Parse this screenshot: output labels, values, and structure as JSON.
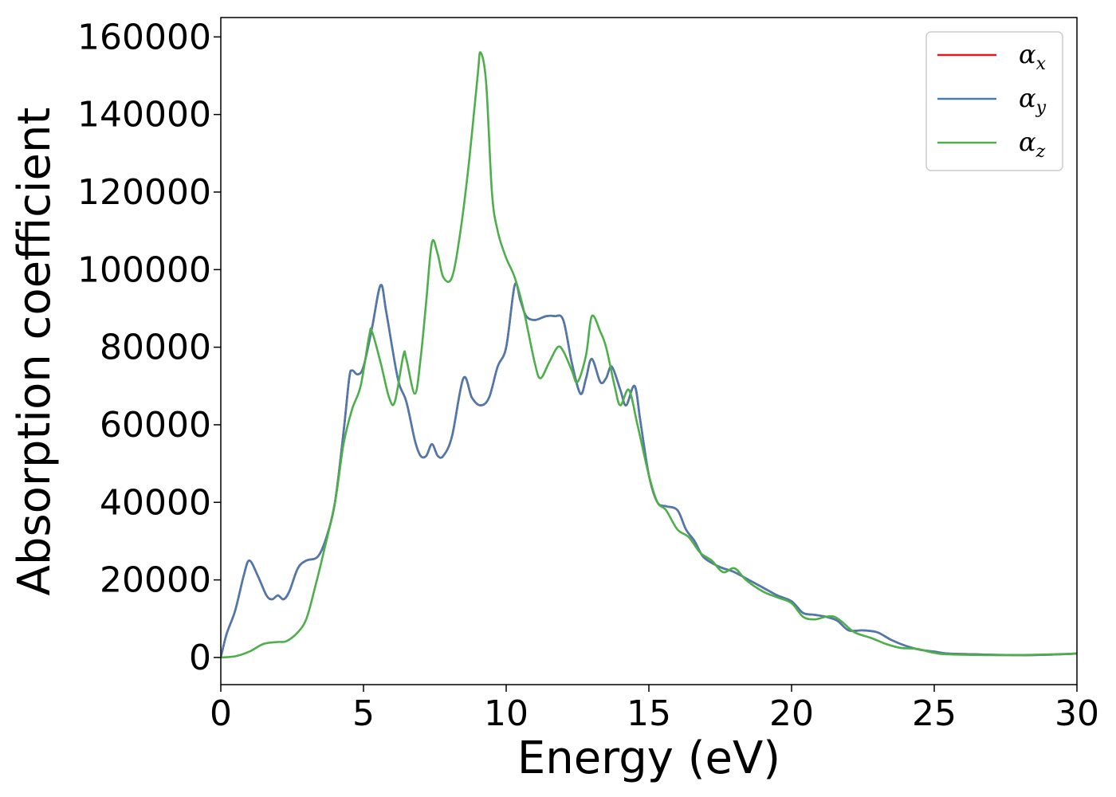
{
  "chart_data": {
    "type": "line",
    "title": "",
    "xlabel": "Energy (eV)",
    "ylabel": "Absorption coefficient",
    "xlim": [
      0,
      30
    ],
    "ylim": [
      -7000,
      165000
    ],
    "xticks": [
      "0",
      "5",
      "10",
      "15",
      "20",
      "25",
      "30"
    ],
    "yticks": [
      "0",
      "20000",
      "40000",
      "60000",
      "80000",
      "100000",
      "120000",
      "140000",
      "160000"
    ],
    "grid": false,
    "legend_position": "top-right",
    "series": [
      {
        "name": "α",
        "subscript": "x",
        "color": "#e41a1c",
        "points": [
          [
            0,
            0
          ],
          [
            0.2,
            6000
          ],
          [
            0.5,
            12000
          ],
          [
            0.8,
            21000
          ],
          [
            1.0,
            25000
          ],
          [
            1.3,
            21000
          ],
          [
            1.6,
            16000
          ],
          [
            1.8,
            15000
          ],
          [
            2.0,
            16000
          ],
          [
            2.2,
            15000
          ],
          [
            2.4,
            17000
          ],
          [
            2.7,
            23000
          ],
          [
            3.0,
            25000
          ],
          [
            3.4,
            26000
          ],
          [
            3.7,
            31000
          ],
          [
            4.0,
            40000
          ],
          [
            4.3,
            58000
          ],
          [
            4.5,
            72000
          ],
          [
            4.6,
            74000
          ],
          [
            4.8,
            73000
          ],
          [
            5.0,
            75000
          ],
          [
            5.3,
            85000
          ],
          [
            5.6,
            96000
          ],
          [
            5.8,
            89000
          ],
          [
            6.2,
            72000
          ],
          [
            6.5,
            66000
          ],
          [
            6.8,
            56000
          ],
          [
            7.0,
            52000
          ],
          [
            7.2,
            52000
          ],
          [
            7.4,
            55000
          ],
          [
            7.6,
            52000
          ],
          [
            7.8,
            52000
          ],
          [
            8.1,
            57000
          ],
          [
            8.5,
            72000
          ],
          [
            8.8,
            67000
          ],
          [
            9.1,
            65000
          ],
          [
            9.4,
            67000
          ],
          [
            9.7,
            75000
          ],
          [
            10.0,
            80000
          ],
          [
            10.3,
            96000
          ],
          [
            10.5,
            92000
          ],
          [
            10.7,
            88000
          ],
          [
            11.0,
            87000
          ],
          [
            11.4,
            88000
          ],
          [
            11.7,
            88000
          ],
          [
            12.0,
            87000
          ],
          [
            12.3,
            76000
          ],
          [
            12.6,
            68000
          ],
          [
            12.8,
            72000
          ],
          [
            13.0,
            77000
          ],
          [
            13.3,
            71000
          ],
          [
            13.5,
            72000
          ],
          [
            13.7,
            75000
          ],
          [
            14.0,
            69000
          ],
          [
            14.2,
            65000
          ],
          [
            14.5,
            70000
          ],
          [
            14.7,
            61000
          ],
          [
            15.0,
            47000
          ],
          [
            15.3,
            40000
          ],
          [
            15.6,
            39000
          ],
          [
            16.0,
            38000
          ],
          [
            16.3,
            33000
          ],
          [
            16.6,
            30000
          ],
          [
            16.9,
            26000
          ],
          [
            17.3,
            24000
          ],
          [
            17.6,
            23000
          ],
          [
            18.0,
            22000
          ],
          [
            18.5,
            20000
          ],
          [
            19.0,
            18000
          ],
          [
            19.5,
            16000
          ],
          [
            20.0,
            14500
          ],
          [
            20.4,
            11500
          ],
          [
            20.8,
            11000
          ],
          [
            21.2,
            10500
          ],
          [
            21.6,
            9500
          ],
          [
            22.0,
            7000
          ],
          [
            22.5,
            7000
          ],
          [
            23.0,
            6500
          ],
          [
            23.5,
            4500
          ],
          [
            24.0,
            3000
          ],
          [
            24.5,
            2000
          ],
          [
            25.0,
            1500
          ],
          [
            25.5,
            1000
          ],
          [
            26.5,
            800
          ],
          [
            28.0,
            600
          ],
          [
            29.0,
            700
          ],
          [
            30.0,
            1000
          ]
        ]
      },
      {
        "name": "α",
        "subscript": "y",
        "color": "#4a7aae",
        "points": [
          [
            0,
            0
          ],
          [
            0.2,
            6000
          ],
          [
            0.5,
            12000
          ],
          [
            0.8,
            21000
          ],
          [
            1.0,
            25000
          ],
          [
            1.3,
            21000
          ],
          [
            1.6,
            16000
          ],
          [
            1.8,
            15000
          ],
          [
            2.0,
            16000
          ],
          [
            2.2,
            15000
          ],
          [
            2.4,
            17000
          ],
          [
            2.7,
            23000
          ],
          [
            3.0,
            25000
          ],
          [
            3.4,
            26000
          ],
          [
            3.7,
            31000
          ],
          [
            4.0,
            40000
          ],
          [
            4.3,
            58000
          ],
          [
            4.5,
            72000
          ],
          [
            4.6,
            74000
          ],
          [
            4.8,
            73000
          ],
          [
            5.0,
            75000
          ],
          [
            5.3,
            85000
          ],
          [
            5.6,
            96000
          ],
          [
            5.8,
            89000
          ],
          [
            6.2,
            72000
          ],
          [
            6.5,
            66000
          ],
          [
            6.8,
            56000
          ],
          [
            7.0,
            52000
          ],
          [
            7.2,
            52000
          ],
          [
            7.4,
            55000
          ],
          [
            7.6,
            52000
          ],
          [
            7.8,
            52000
          ],
          [
            8.1,
            57000
          ],
          [
            8.5,
            72000
          ],
          [
            8.8,
            67000
          ],
          [
            9.1,
            65000
          ],
          [
            9.4,
            67000
          ],
          [
            9.7,
            75000
          ],
          [
            10.0,
            80000
          ],
          [
            10.3,
            96000
          ],
          [
            10.5,
            92000
          ],
          [
            10.7,
            88000
          ],
          [
            11.0,
            87000
          ],
          [
            11.4,
            88000
          ],
          [
            11.7,
            88000
          ],
          [
            12.0,
            87000
          ],
          [
            12.3,
            76000
          ],
          [
            12.6,
            68000
          ],
          [
            12.8,
            72000
          ],
          [
            13.0,
            77000
          ],
          [
            13.3,
            71000
          ],
          [
            13.5,
            72000
          ],
          [
            13.7,
            75000
          ],
          [
            14.0,
            69000
          ],
          [
            14.2,
            65000
          ],
          [
            14.5,
            70000
          ],
          [
            14.7,
            61000
          ],
          [
            15.0,
            47000
          ],
          [
            15.3,
            40000
          ],
          [
            15.6,
            39000
          ],
          [
            16.0,
            38000
          ],
          [
            16.3,
            33000
          ],
          [
            16.6,
            30000
          ],
          [
            16.9,
            26000
          ],
          [
            17.3,
            24000
          ],
          [
            17.6,
            23000
          ],
          [
            18.0,
            22000
          ],
          [
            18.5,
            20000
          ],
          [
            19.0,
            18000
          ],
          [
            19.5,
            16000
          ],
          [
            20.0,
            14500
          ],
          [
            20.4,
            11500
          ],
          [
            20.8,
            11000
          ],
          [
            21.2,
            10500
          ],
          [
            21.6,
            9500
          ],
          [
            22.0,
            7000
          ],
          [
            22.5,
            7000
          ],
          [
            23.0,
            6500
          ],
          [
            23.5,
            4500
          ],
          [
            24.0,
            3000
          ],
          [
            24.5,
            2000
          ],
          [
            25.0,
            1500
          ],
          [
            25.5,
            1000
          ],
          [
            26.5,
            800
          ],
          [
            28.0,
            600
          ],
          [
            29.0,
            700
          ],
          [
            30.0,
            1000
          ]
        ]
      },
      {
        "name": "α",
        "subscript": "z",
        "color": "#4daf4a",
        "points": [
          [
            0,
            0
          ],
          [
            0.5,
            300
          ],
          [
            1.0,
            1500
          ],
          [
            1.5,
            3500
          ],
          [
            2.0,
            4000
          ],
          [
            2.3,
            4200
          ],
          [
            2.7,
            6500
          ],
          [
            3.0,
            10000
          ],
          [
            3.3,
            18000
          ],
          [
            3.6,
            27000
          ],
          [
            4.0,
            40000
          ],
          [
            4.3,
            55000
          ],
          [
            4.6,
            64000
          ],
          [
            4.9,
            70000
          ],
          [
            5.2,
            83000
          ],
          [
            5.3,
            84000
          ],
          [
            5.6,
            76000
          ],
          [
            5.9,
            67000
          ],
          [
            6.1,
            66000
          ],
          [
            6.4,
            78000
          ],
          [
            6.5,
            77000
          ],
          [
            6.8,
            68000
          ],
          [
            7.0,
            77000
          ],
          [
            7.2,
            92000
          ],
          [
            7.4,
            107000
          ],
          [
            7.6,
            104000
          ],
          [
            7.8,
            98000
          ],
          [
            8.1,
            98000
          ],
          [
            8.4,
            110000
          ],
          [
            8.7,
            128000
          ],
          [
            9.0,
            150000
          ],
          [
            9.1,
            156000
          ],
          [
            9.3,
            148000
          ],
          [
            9.5,
            120000
          ],
          [
            9.7,
            110000
          ],
          [
            10.0,
            103000
          ],
          [
            10.3,
            98000
          ],
          [
            10.6,
            90000
          ],
          [
            11.0,
            76000
          ],
          [
            11.2,
            72000
          ],
          [
            11.5,
            76000
          ],
          [
            11.8,
            80000
          ],
          [
            12.0,
            79000
          ],
          [
            12.3,
            74000
          ],
          [
            12.5,
            71000
          ],
          [
            12.8,
            78000
          ],
          [
            13.0,
            88000
          ],
          [
            13.3,
            84000
          ],
          [
            13.5,
            80000
          ],
          [
            13.8,
            70000
          ],
          [
            14.0,
            65000
          ],
          [
            14.3,
            69000
          ],
          [
            14.6,
            60000
          ],
          [
            15.0,
            47000
          ],
          [
            15.3,
            40000
          ],
          [
            15.6,
            38000
          ],
          [
            16.0,
            33000
          ],
          [
            16.4,
            31000
          ],
          [
            16.8,
            27000
          ],
          [
            17.2,
            25000
          ],
          [
            17.6,
            22000
          ],
          [
            18.0,
            23000
          ],
          [
            18.4,
            20000
          ],
          [
            19.0,
            17000
          ],
          [
            19.5,
            15500
          ],
          [
            20.0,
            14000
          ],
          [
            20.4,
            10500
          ],
          [
            20.8,
            9800
          ],
          [
            21.2,
            10500
          ],
          [
            21.5,
            10500
          ],
          [
            21.8,
            9000
          ],
          [
            22.2,
            6500
          ],
          [
            22.8,
            5000
          ],
          [
            23.3,
            3500
          ],
          [
            23.8,
            2500
          ],
          [
            24.4,
            2200
          ],
          [
            25.0,
            1200
          ],
          [
            25.5,
            800
          ],
          [
            27.0,
            600
          ],
          [
            28.5,
            700
          ],
          [
            30.0,
            1000
          ]
        ]
      }
    ]
  }
}
